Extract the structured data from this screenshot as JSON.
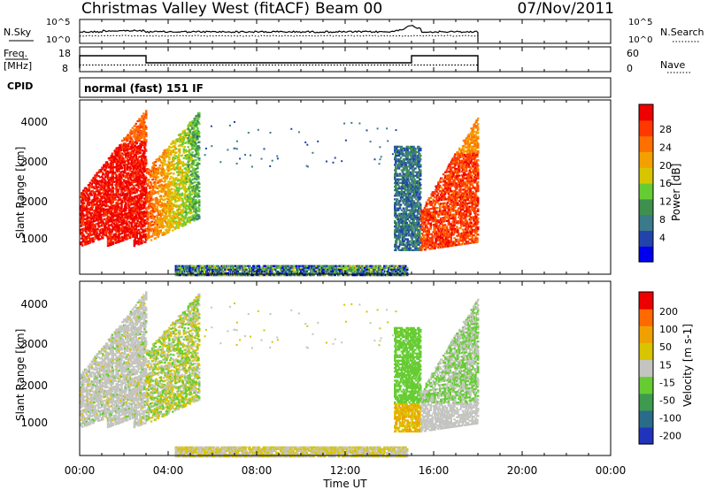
{
  "header": {
    "title": "Christmas Valley West (fitACF)",
    "beam": "Beam 00",
    "date": "07/Nov/2011"
  },
  "noise_panel": {
    "left_label": "N.Sky",
    "left_ticks": [
      "10^5",
      "10^0"
    ],
    "right_ticks": [
      "10^5",
      "10^0"
    ],
    "right_label": "N.Search"
  },
  "freq_panel": {
    "left_label_top": "Freq.",
    "left_label_bottom": "[MHz]",
    "left_ticks": [
      "18",
      "8"
    ],
    "right_ticks": [
      "60",
      "0"
    ],
    "right_label": "Nave"
  },
  "cpid": {
    "label": "CPID",
    "mode": "normal (fast) 151 IF"
  },
  "time_axis": {
    "label": "Time UT",
    "ticks": [
      "00:00",
      "04:00",
      "08:00",
      "12:00",
      "16:00",
      "20:00",
      "00:00"
    ]
  },
  "chart_data": [
    {
      "type": "heatmap",
      "name": "power",
      "ylabel": "Slant Range [km]",
      "yticks": [
        "1000",
        "2000",
        "3000",
        "4000"
      ],
      "ylim": [
        180,
        4500
      ],
      "xlim_hours": [
        0,
        24
      ],
      "colorbar_label": "Power [dB]",
      "colorbar_ticks": [
        "28",
        "24",
        "20",
        "16",
        "12",
        "8",
        "4"
      ],
      "colors": [
        "#0000ee",
        "#2244aa",
        "#3a7a8a",
        "#3f8f4f",
        "#66cc33",
        "#d7c500",
        "#f4a000",
        "#ff7000",
        "#ff3800",
        "#ee0000"
      ]
    },
    {
      "type": "heatmap",
      "name": "velocity",
      "ylabel": "Slant Range [km]",
      "yticks": [
        "1000",
        "2000",
        "3000",
        "4000"
      ],
      "ylim": [
        180,
        4500
      ],
      "xlim_hours": [
        0,
        24
      ],
      "colorbar_label": "Velocity [m s-1]",
      "colorbar_ticks": [
        "200",
        "100",
        "50",
        "15",
        "-15",
        "-50",
        "-100",
        "-200"
      ],
      "colors": [
        "#2233bb",
        "#2a6b8a",
        "#3e9a4e",
        "#66cc33",
        "#c4c4c0",
        "#d8c400",
        "#f0a000",
        "#ff6a00",
        "#ee0000"
      ]
    }
  ]
}
